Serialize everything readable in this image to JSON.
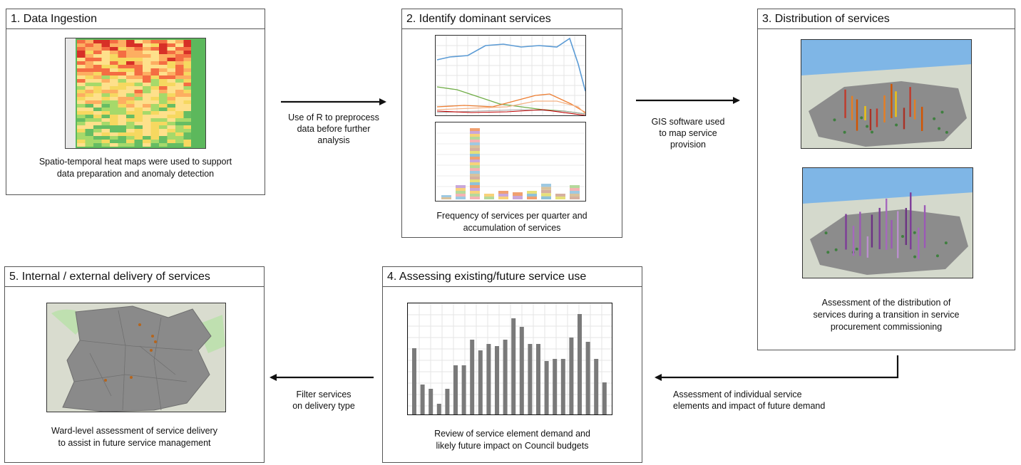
{
  "panels": {
    "p1": {
      "title": "1. Data Ingestion",
      "caption_line1": "Spatio-temporal heat maps were used to support",
      "caption_line2": "data preparation and anomaly detection"
    },
    "p2": {
      "title": "2. Identify dominant services",
      "caption_line1": "Frequency of services per quarter and",
      "caption_line2": "accumulation of services"
    },
    "p3": {
      "title": "3. Distribution of services",
      "caption_line1": "Assessment of the distribution of",
      "caption_line2": "services during a transition in service",
      "caption_line3": "procurement commissioning"
    },
    "p4": {
      "title": "4. Assessing existing/future service use",
      "caption_line1": "Review of service element demand and",
      "caption_line2": "likely future impact on Council budgets"
    },
    "p5": {
      "title": "5. Internal / external delivery of services",
      "caption_line1": "Ward-level assessment of service delivery",
      "caption_line2": "to assist in future service management"
    }
  },
  "arrows": {
    "a12": {
      "line1": "Use of R to preprocess",
      "line2": "data before further",
      "line3": "analysis"
    },
    "a23": {
      "line1": "GIS software used",
      "line2": "to map service",
      "line3": "provision"
    },
    "a34": {
      "line1": "Assessment of individual service",
      "line2": "elements and impact of future demand"
    },
    "a45": {
      "line1": "Filter services",
      "line2": "on delivery type"
    }
  },
  "colors": {
    "border": "#555555",
    "arrow": "#111111",
    "heat_high": "#d7301f",
    "heat_mid": "#f4c542",
    "heat_low": "#4caf50",
    "bar_gray": "#808080"
  }
}
